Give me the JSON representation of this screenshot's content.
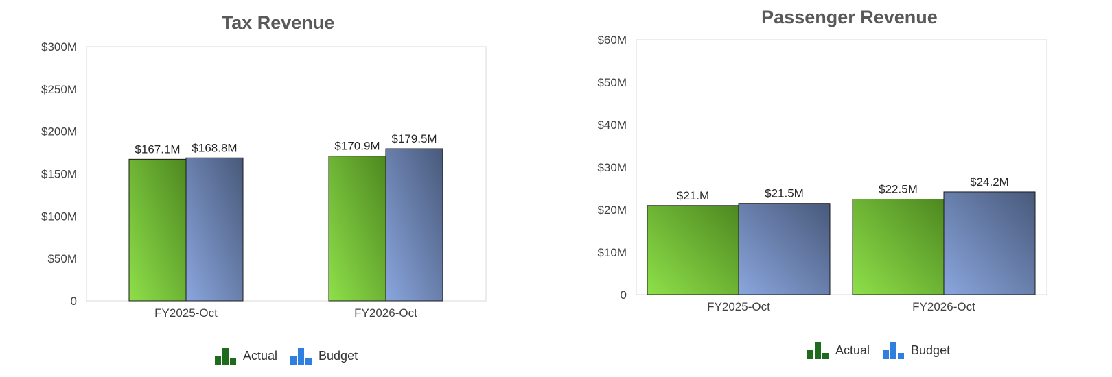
{
  "chart_data": [
    {
      "type": "bar",
      "title": "Tax Revenue",
      "categories": [
        "FY2025-Oct",
        "FY2026-Oct"
      ],
      "series": [
        {
          "name": "Actual",
          "values": [
            167.1,
            170.9
          ],
          "labels": [
            "$167.1M",
            "$170.9M"
          ]
        },
        {
          "name": "Budget",
          "values": [
            168.8,
            179.5
          ],
          "labels": [
            "$168.8M",
            "$179.5M"
          ]
        }
      ],
      "ylim": [
        0,
        300
      ],
      "yticks": [
        0,
        50,
        100,
        150,
        200,
        250,
        300
      ],
      "ytick_labels": [
        "0",
        "$50M",
        "$100M",
        "$150M",
        "$200M",
        "$250M",
        "$300M"
      ],
      "xlabel": "",
      "ylabel": "",
      "legend_position": "bottom",
      "grid": false
    },
    {
      "type": "bar",
      "title": "Passenger Revenue",
      "categories": [
        "FY2025-Oct",
        "FY2026-Oct"
      ],
      "series": [
        {
          "name": "Actual",
          "values": [
            21.0,
            22.5
          ],
          "labels": [
            "$21.M",
            "$22.5M"
          ]
        },
        {
          "name": "Budget",
          "values": [
            21.5,
            24.2
          ],
          "labels": [
            "$21.5M",
            "$24.2M"
          ]
        }
      ],
      "ylim": [
        0,
        60
      ],
      "yticks": [
        0,
        10,
        20,
        30,
        40,
        50,
        60
      ],
      "ytick_labels": [
        "0",
        "$10M",
        "$20M",
        "$30M",
        "$40M",
        "$50M",
        "$60M"
      ],
      "xlabel": "",
      "ylabel": "",
      "legend_position": "bottom",
      "grid": false
    }
  ],
  "colors": {
    "actual_light": "#8ee04a",
    "actual_dark": "#4e8820",
    "budget_light": "#8aa6de",
    "budget_dark": "#48597a",
    "legend_actual_icon": "#1e6b1e",
    "legend_budget_icon": "#2f7fe0"
  },
  "legend": {
    "actual_label": "Actual",
    "budget_label": "Budget",
    "actual_icon": "green-bars-icon",
    "budget_icon": "blue-bars-icon"
  }
}
